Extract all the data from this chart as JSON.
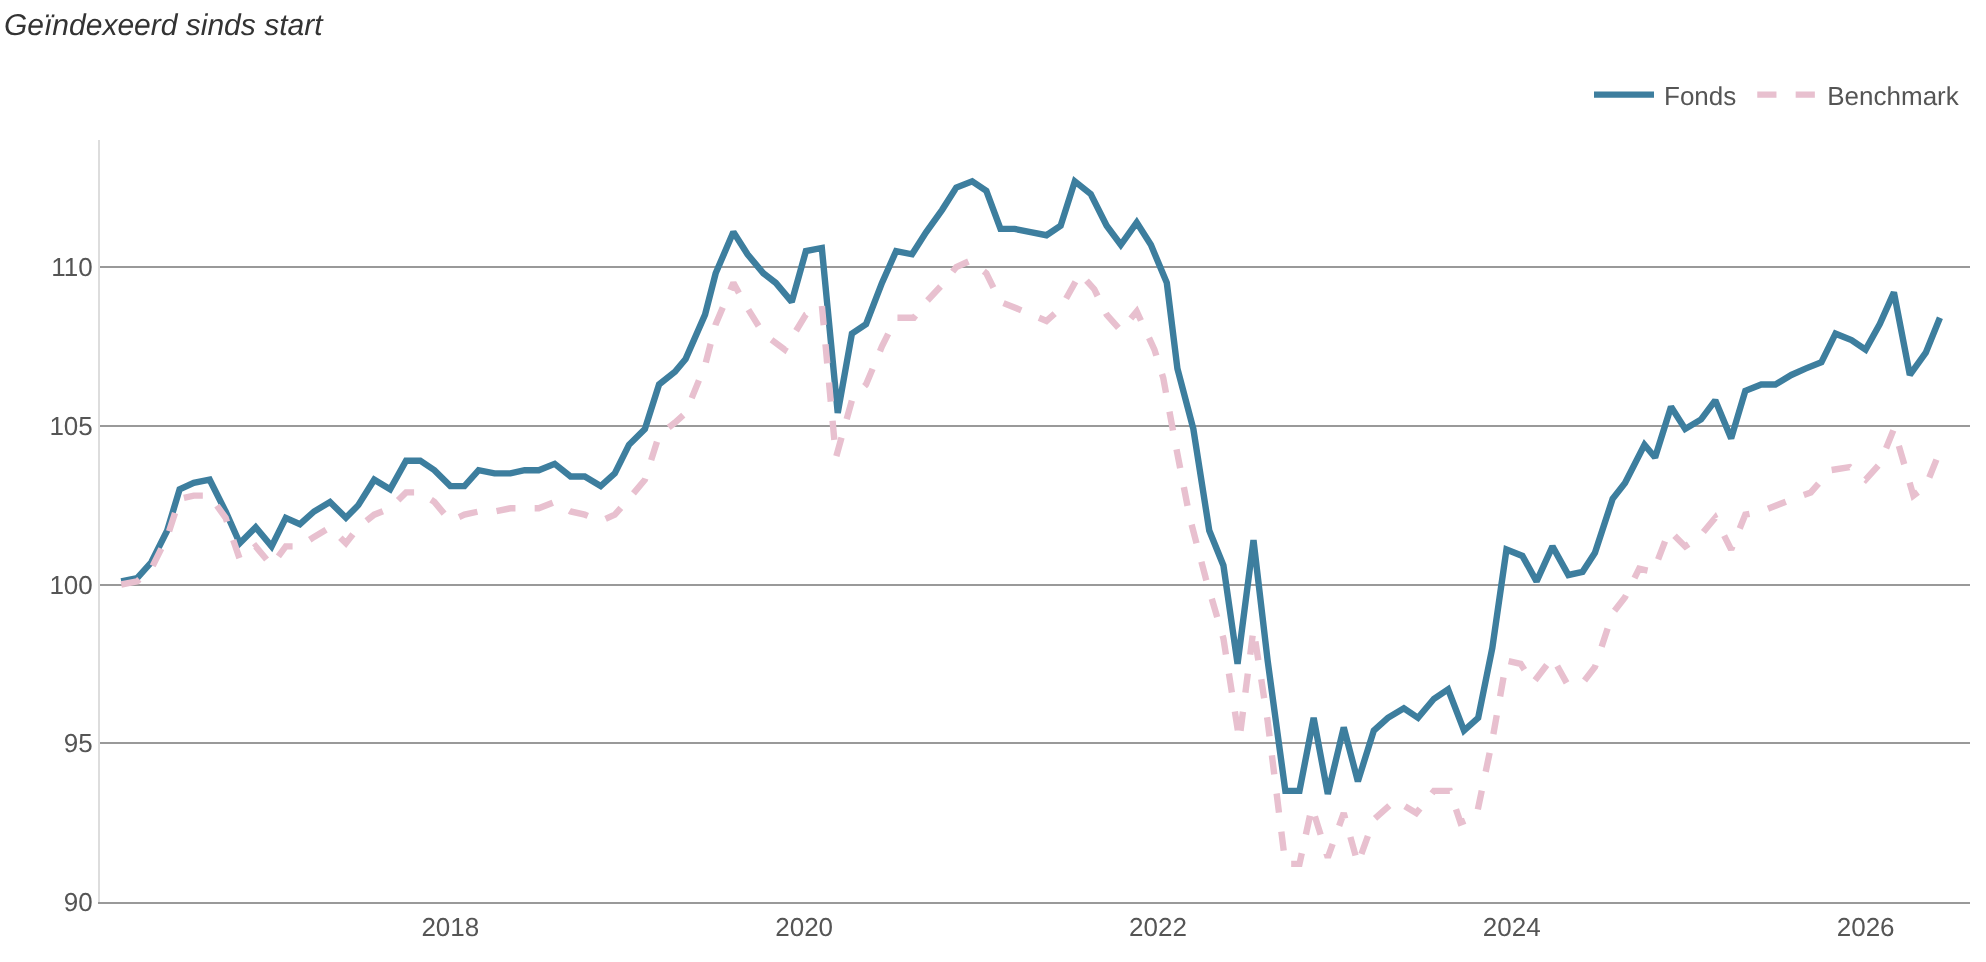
{
  "chart_data": {
    "type": "line",
    "title": "Geïndexeerd sinds start",
    "xlim": [
      2016.02,
      2026.59
    ],
    "xticks": [
      2018,
      2020,
      2022,
      2024,
      2026
    ],
    "ylim": [
      90,
      114
    ],
    "yticks": [
      90,
      95,
      100,
      105,
      110
    ],
    "grid": "y",
    "legend": "top right",
    "marker": "none",
    "series": [
      {
        "name": "Fonds",
        "color": "#3d7e9e",
        "line_style": "solid",
        "x": [
          2016.14,
          2016.23,
          2016.31,
          2016.4,
          2016.47,
          2016.55,
          2016.64,
          2016.73,
          2016.81,
          2016.9,
          2016.99,
          2017.07,
          2017.15,
          2017.23,
          2017.32,
          2017.41,
          2017.48,
          2017.57,
          2017.66,
          2017.75,
          2017.83,
          2017.91,
          2018.0,
          2018.08,
          2018.16,
          2018.25,
          2018.34,
          2018.42,
          2018.5,
          2018.59,
          2018.68,
          2018.76,
          2018.85,
          2018.93,
          2019.01,
          2019.1,
          2019.18,
          2019.27,
          2019.33,
          2019.44,
          2019.5,
          2019.6,
          2019.68,
          2019.77,
          2019.84,
          2019.93,
          2020.01,
          2020.1,
          2020.19,
          2020.27,
          2020.35,
          2020.44,
          2020.52,
          2020.61,
          2020.69,
          2020.78,
          2020.86,
          2020.95,
          2021.03,
          2021.11,
          2021.19,
          2021.28,
          2021.37,
          2021.45,
          2021.53,
          2021.62,
          2021.71,
          2021.79,
          2021.88,
          2021.96,
          2022.05,
          2022.11,
          2022.2,
          2022.29,
          2022.37,
          2022.45,
          2022.54,
          2022.62,
          2022.72,
          2022.8,
          2022.88,
          2022.96,
          2023.05,
          2023.13,
          2023.22,
          2023.3,
          2023.39,
          2023.47,
          2023.56,
          2023.64,
          2023.73,
          2023.81,
          2023.89,
          2023.97,
          2024.06,
          2024.14,
          2024.23,
          2024.32,
          2024.4,
          2024.47,
          2024.57,
          2024.64,
          2024.75,
          2024.81,
          2024.9,
          2024.98,
          2025.07,
          2025.15,
          2025.24,
          2025.32,
          2025.41,
          2025.49,
          2025.58,
          2025.66,
          2025.75,
          2025.83,
          2025.92,
          2026.0,
          2026.08,
          2026.16,
          2026.25,
          2026.34,
          2026.42
        ],
        "values": [
          100.1,
          100.2,
          100.7,
          101.7,
          103.0,
          103.2,
          103.3,
          102.3,
          101.3,
          101.8,
          101.2,
          102.1,
          101.9,
          102.3,
          102.6,
          102.1,
          102.5,
          103.3,
          103.0,
          103.9,
          103.9,
          103.6,
          103.1,
          103.1,
          103.6,
          103.5,
          103.5,
          103.6,
          103.6,
          103.8,
          103.4,
          103.4,
          103.1,
          103.5,
          104.4,
          104.9,
          106.3,
          106.7,
          107.1,
          108.5,
          109.8,
          111.1,
          110.4,
          109.8,
          109.5,
          108.9,
          110.5,
          110.6,
          105.4,
          107.9,
          108.2,
          109.5,
          110.5,
          110.4,
          111.1,
          111.8,
          112.5,
          112.7,
          112.4,
          111.2,
          111.2,
          111.1,
          111.0,
          111.3,
          112.7,
          112.3,
          111.3,
          110.7,
          111.4,
          110.7,
          109.5,
          106.8,
          104.9,
          101.7,
          100.6,
          97.5,
          101.4,
          97.6,
          93.5,
          93.5,
          95.8,
          93.4,
          95.5,
          93.8,
          95.4,
          95.8,
          96.1,
          95.8,
          96.4,
          96.7,
          95.4,
          95.8,
          98.0,
          101.1,
          100.9,
          100.1,
          101.2,
          100.3,
          100.4,
          101.0,
          102.7,
          103.2,
          104.4,
          104.0,
          105.6,
          104.9,
          105.2,
          105.8,
          104.6,
          106.1,
          106.3,
          106.3,
          106.6,
          106.8,
          107.0,
          107.9,
          107.7,
          107.4,
          108.2,
          109.2,
          106.6,
          107.3,
          108.4
        ]
      },
      {
        "name": "Benchmark",
        "color": "#e8c0cf",
        "line_style": "dashed",
        "x": [
          2016.14,
          2016.23,
          2016.31,
          2016.4,
          2016.47,
          2016.55,
          2016.64,
          2016.73,
          2016.81,
          2016.9,
          2016.99,
          2017.07,
          2017.15,
          2017.23,
          2017.32,
          2017.41,
          2017.48,
          2017.57,
          2017.66,
          2017.75,
          2017.83,
          2017.91,
          2018.0,
          2018.08,
          2018.16,
          2018.25,
          2018.34,
          2018.42,
          2018.5,
          2018.59,
          2018.68,
          2018.76,
          2018.85,
          2018.93,
          2019.01,
          2019.1,
          2019.18,
          2019.27,
          2019.33,
          2019.44,
          2019.5,
          2019.6,
          2019.68,
          2019.77,
          2019.89,
          2020.01,
          2020.1,
          2020.18,
          2020.27,
          2020.35,
          2020.44,
          2020.52,
          2020.62,
          2020.69,
          2020.79,
          2020.86,
          2020.94,
          2021.03,
          2021.11,
          2021.2,
          2021.37,
          2021.45,
          2021.56,
          2021.64,
          2021.71,
          2021.79,
          2021.88,
          2021.98,
          2022.03,
          2022.1,
          2022.18,
          2022.27,
          2022.37,
          2022.46,
          2022.54,
          2022.62,
          2022.72,
          2022.8,
          2022.87,
          2022.96,
          2023.05,
          2023.13,
          2023.22,
          2023.34,
          2023.46,
          2023.56,
          2023.65,
          2023.71,
          2023.8,
          2023.89,
          2023.97,
          2024.05,
          2024.12,
          2024.23,
          2024.31,
          2024.4,
          2024.47,
          2024.57,
          2024.64,
          2024.72,
          2024.8,
          2024.89,
          2024.98,
          2025.06,
          2025.15,
          2025.24,
          2025.32,
          2025.41,
          2025.59,
          2025.69,
          2025.8,
          2025.91,
          2026.0,
          2026.08,
          2026.16,
          2026.27,
          2026.34,
          2026.42
        ],
        "values": [
          100.0,
          100.1,
          100.5,
          101.5,
          102.7,
          102.8,
          102.8,
          102.1,
          100.8,
          101.2,
          100.6,
          101.2,
          101.2,
          101.5,
          101.8,
          101.3,
          101.8,
          102.2,
          102.4,
          102.9,
          102.9,
          102.6,
          102.0,
          102.2,
          102.3,
          102.3,
          102.4,
          102.4,
          102.4,
          102.6,
          102.3,
          102.2,
          102.0,
          102.2,
          102.7,
          103.3,
          104.7,
          105.1,
          105.4,
          106.9,
          108.2,
          109.5,
          108.7,
          107.9,
          107.4,
          108.5,
          108.8,
          104.0,
          105.8,
          106.3,
          107.5,
          108.4,
          108.4,
          108.9,
          109.5,
          110.0,
          110.2,
          109.8,
          108.9,
          108.7,
          108.3,
          108.7,
          109.8,
          109.3,
          108.5,
          108.0,
          108.6,
          107.4,
          106.5,
          104.4,
          102.1,
          100.2,
          98.3,
          95.1,
          98.6,
          95.7,
          91.2,
          91.2,
          93.0,
          91.4,
          92.8,
          91.2,
          92.6,
          93.2,
          92.8,
          93.5,
          93.5,
          92.5,
          92.7,
          95.1,
          97.6,
          97.5,
          96.9,
          97.7,
          96.9,
          96.9,
          97.4,
          99.1,
          99.6,
          100.5,
          100.4,
          101.7,
          101.2,
          101.5,
          102.1,
          101.1,
          102.2,
          102.3,
          102.7,
          102.9,
          103.6,
          103.7,
          103.3,
          103.8,
          104.9,
          102.8,
          103.1,
          104.2
        ]
      }
    ]
  }
}
